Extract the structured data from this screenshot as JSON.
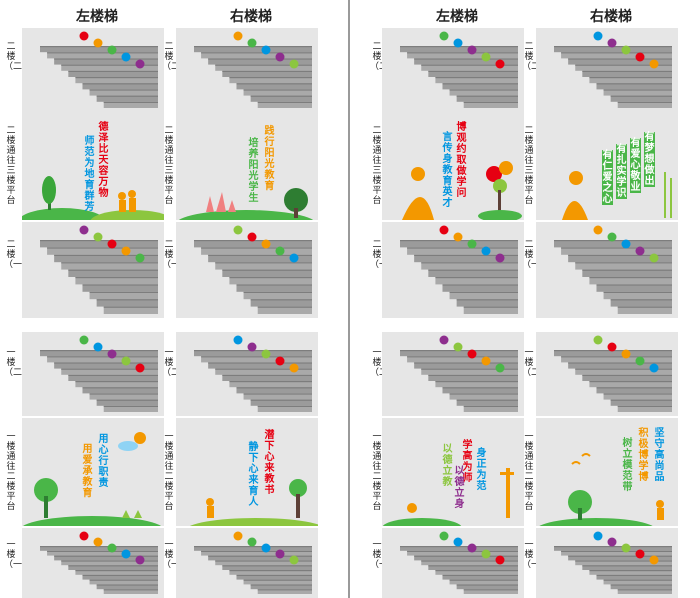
{
  "headers": {
    "left_stairs": "左楼梯",
    "right_stairs": "右楼梯",
    "left_stairs_2": "左楼梯",
    "right_stairs_2": "右楼梯"
  },
  "rows": {
    "floor2_upper": "二楼（二）",
    "floor2_to_3": "二楼通往三楼平台",
    "floor2_lower": "二楼（一）",
    "floor1_upper": "一楼（二）",
    "floor1_to_2": "一楼通往二楼平台",
    "floor1_lower": "一楼（一）"
  },
  "slogans": {
    "a1": "德泽比天容万物",
    "a2": "师范为地育群芳",
    "b1": "践行阳光教育",
    "b2": "培养阳光学生",
    "c1": "博观约取做学问",
    "c2": "言传身教育英才",
    "d1": "有梦想做出",
    "d2": "有爱心敬业",
    "d3": "有扎实学识",
    "d4": "有仁爱之心",
    "e1": "用心行职责",
    "e2": "用爱承教育",
    "f1": "潜下心来教书",
    "f2": "静下心来育人",
    "g1": "学高为师",
    "g2": "身正为范",
    "g3": "以德立教",
    "g4": "以德立身",
    "h1": "坚守高尚品",
    "h2": "积极博学博",
    "h3": "树立模范带"
  },
  "colors": {
    "panel_bg": "#e6e6e6",
    "stair": "#a9a9a9",
    "stair_dark": "#7d7d7d",
    "green": "#4ab648",
    "orange": "#f39800",
    "red": "#e60012",
    "blue": "#0096e0",
    "purple": "#8e2e8e"
  }
}
